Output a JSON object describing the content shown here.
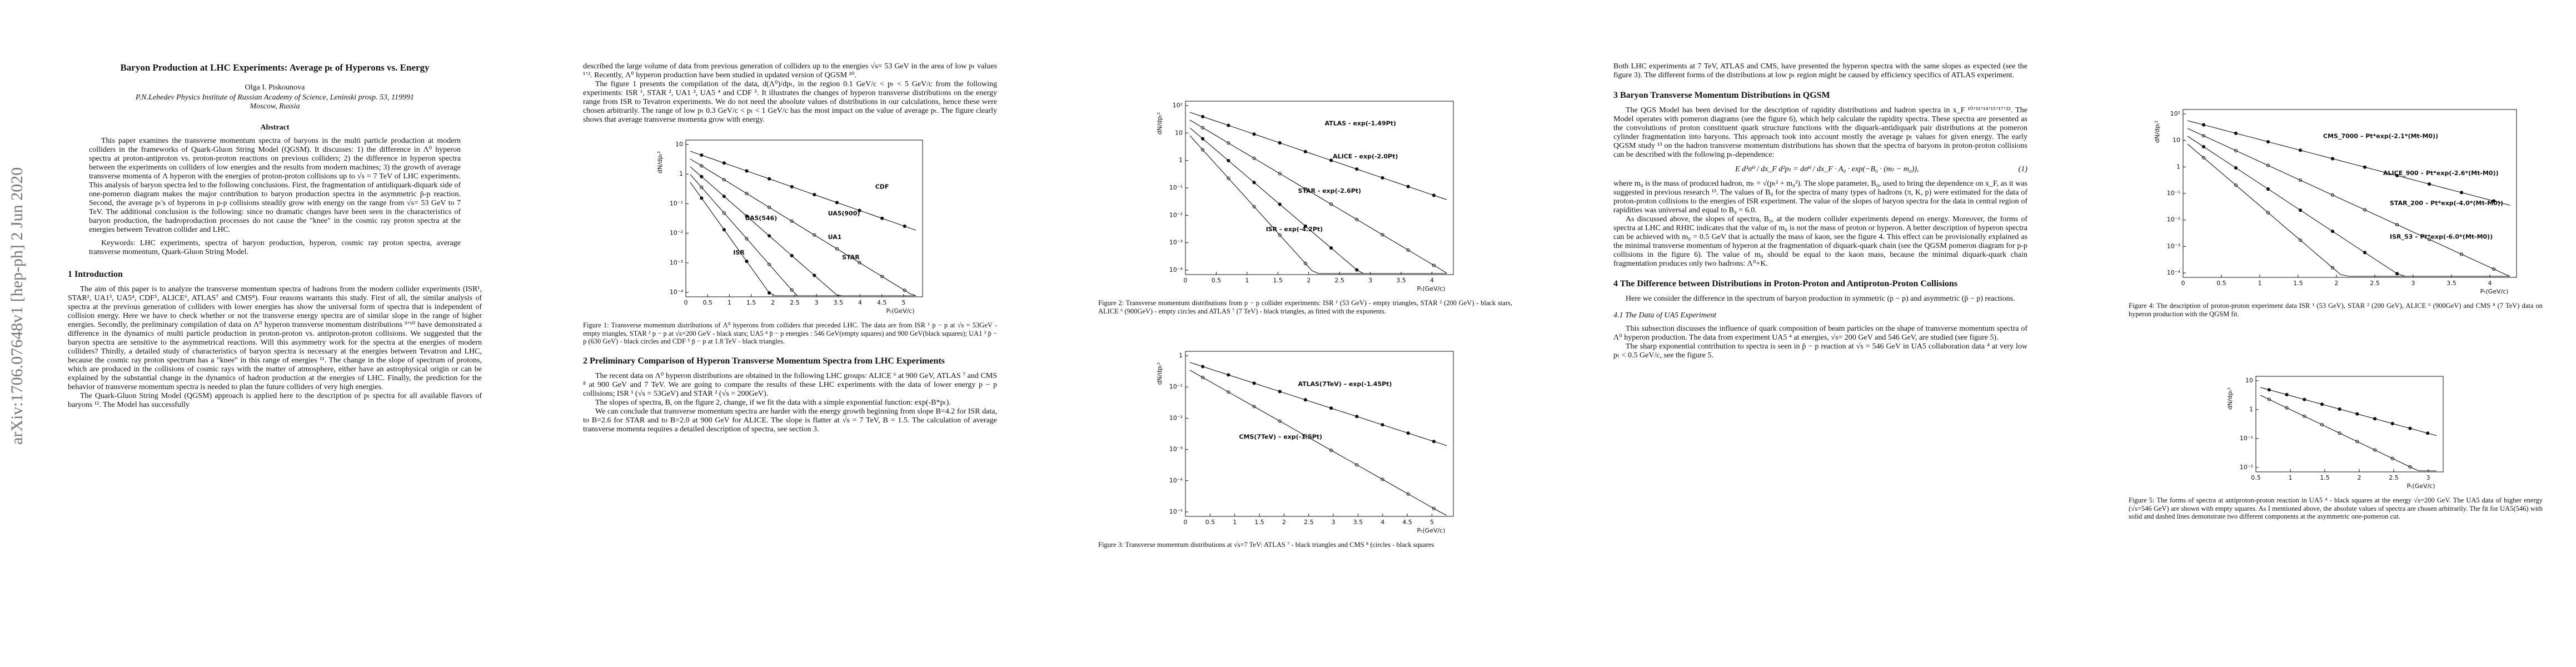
{
  "arxiv_stamp": "arXiv:1706.07648v1  [hep-ph]  2 Jun 2020",
  "pages": [
    {
      "blocks": [
        {
          "title": "Baryon Production at LHC Experiments: Average pₜ of Hyperons vs. Energy"
        },
        {
          "author": "Olga I. Piskounova"
        },
        {
          "centered": "P.N.Lebedev Physics Institute of Russian Academy of Science, Leninski prosp. 53, 119991"
        },
        {
          "centered": "Moscow, Russia"
        },
        {
          "abstract_heading": "Abstract"
        },
        {
          "abstract": "This paper examines the transverse momentum spectra of baryons in the multi particle production at modern colliders in the frameworks of Quark-Gluon String Model (QGSM). It discusses: 1) the difference in Λ⁰ hyperon spectra at proton-antiproton vs. proton-proton reactions on previous colliders; 2) the difference in hyperon spectra between the experiments on colliders of low energies and the results from modern machines; 3) the growth of average transverse momenta of Λ hyperon with the energies of proton-proton collisions up to √s = 7 TeV of LHC experiments. This analysis of baryon spectra led to the following conclusions. First, the fragmentation of antidiquark-diquark side of one-pomeron diagram makes the major contribution to baryon production spectra in the asymmetric p̄-p reaction. Second, the average pₜ's of hyperons in p-p collisions steadily grow with energy on the range from √s= 53 GeV to 7 TeV. The additional conclusion is the following: since no dramatic changes have been seen in the characteristics of baryon production, the hadroproduction processes do not cause the \"knee\" in the cosmic ray proton spectra at the energies between Tevatron collider and LHC."
        },
        {
          "keywords": "Keywords: LHC experiments, spectra of baryon production, hyperon, cosmic ray proton spectra, average transverse momentum, Quark-Gluon String Model."
        },
        {
          "heading": "1    Introduction"
        },
        {
          "paragraph": "The aim of this paper is to analyze the transverse momentum spectra of hadrons from the modern collider experiments (ISR¹, STAR², UA1³, UA5⁴, CDF⁵, ALICE⁶, ATLAS⁷ and CMS⁸). Four reasons warrants this study. First of all, the similar analysis of spectra at the previous generation of colliders with lower energies has show the universal form of spectra that is independent of collision energy. Here we have to check whether or not the transverse energy spectra are of similar slope in the range of higher energies. Secondly, the preliminary compilation of data on Λ⁰ hyperon transverse momentum distributions ⁹ʼ¹⁰ have demonstrated a difference in the dynamics of multi particle production in proton-proton vs. antiproton-proton collisions. We suggested that the baryon spectra are sensitive to the asymmetrical reactions. Will this asymmetry work for the spectra at the energies of modern colliders? Thirdly, a detailed study of characteristics of baryon spectra is necessary at the energies between Tevatron and LHC, because the cosmic ray proton spectrum has a \"knee\" in this range of energies ¹¹. The change in the slope of spectrum of protons, which are produced in the collisions of cosmic rays with the matter of atmosphere, either have an astrophysical origin or can be explained by the substantial change in the dynamics of hadron production at the energies of LHC. Finally, the prediction for the behavior of transverse momentum spectra is needed to plan the future colliders of very high energies."
        },
        {
          "paragraph": "The Quark-Gluon String Model (QGSM) approach is applied here to the description of pₜ spectra for all available flavors of baryons ¹². The Model has successfully"
        }
      ]
    },
    {
      "blocks": [
        {
          "continued": "described the large volume of data from previous generation of colliders up to the energies √s= 53 GeV in the area of low pₜ values ¹ʼ². Recently, Λ⁰ hyperon production have been studied in updated version of QGSM ²⁰."
        },
        {
          "paragraph": "The figure 1 presents the compilation of the data, d(Λ⁰)/dpₜ, in the region 0.1 GeV/c < pₜ < 5 GeV/c from the following experiments: ISR ¹, STAR ², UA1 ³, UA5 ⁴ and CDF ⁵. It illustrates the changes of hyperon transverse distributions on the energy range from ISR to Tevatron experiments. We do not need the absolute values of distributions in our calculations, hence these were chosen arbitrarily. The range of low pₜ 0.3 GeV/c < pₜ < 1 GeV/c has the most impact on the value of average pₜ. The figure clearly shows that average transverse momenta grow with energy."
        },
        {
          "figure": {
            "ylabel": "dN/dpₜ²",
            "xlabel": "Pₜ(GeV/c)",
            "xticks": [
              "0",
              "0.5",
              "1",
              "1.5",
              "2",
              "2.5",
              "3",
              "3.5",
              "4",
              "4.5",
              "5"
            ],
            "yticks": [
              "10",
              "1",
              "10⁻¹",
              "10⁻²",
              "10⁻³",
              "10⁻⁴"
            ],
            "labels": [
              "CDF",
              "UA5(900)",
              "UA5(546)",
              "UA1",
              "STAR",
              "ISR"
            ]
          },
          "caption": "Figure 1:   Transverse momentum distributions of Λ⁰ hyperons from colliders that preceded LHC. The data are from ISR ¹ p − p at √s = 53GeV - empty triangles, STAR ² p − p at √s=200 GeV - black stars; UA5 ⁴ p̄ − p energies : 546 GeV(empty squares) and 900 GeV(black squares); UA1 ³ p̄ − p (630 GeV) - black circles and CDF ⁵ p̄ − p at 1.8 TeV - black triangles."
        },
        {
          "heading": "2    Preliminary Comparison of Hyperon Transverse Momentum Spectra from LHC Experiments"
        },
        {
          "paragraph": "The recent data on Λ⁰ hyperon distributions are obtained in the following LHC groups: ALICE ⁶ at 900 GeV, ATLAS ⁷ and CMS ⁸ at 900 GeV and 7 TeV. We are going to compare the results of these LHC experiments with the data of lower energy p − p collisions; ISR ¹ (√s = 53GeV) and STAR ² (√s = 200GeV)."
        },
        {
          "paragraph": "The slopes of spectra, B, on the figure 2, change, if we fit the data with a simple exponential function: exp(-B*pₜ)."
        },
        {
          "paragraph": "We can conclude that transverse momentum spectra are harder with the energy growth beginning from slope B=4.2 for ISR data, to B=2.6 for STAR and to B=2.0 at 900 GeV for ALICE. The slope is flatter at √s = 7 TeV, B = 1.5. The calculation of average transverse momenta requires a detailed description of spectra, see section 3."
        }
      ]
    },
    {
      "blocks": [
        {
          "figure": {
            "ylabel": "dN/dpₜ²",
            "xlabel": "Pₜ(GeV/c)",
            "xticks": [
              "0",
              "0.5",
              "1",
              "1.5",
              "2",
              "2.5",
              "3",
              "3.5",
              "4"
            ],
            "yticks": [
              "10²",
              "10",
              "1",
              "10⁻¹",
              "10⁻²",
              "10⁻³",
              "10⁻⁴"
            ],
            "labels": [
              "ATLAS - exp(-1.49Pt)",
              "ALICE - exp(-2.0Pt)",
              "STAR - exp(-2.6Pt)",
              "ISR - exp(-4.2Pt)"
            ]
          },
          "caption": "Figure 2:   Transverse momentum distributions from p − p collider experiments: ISR ¹ (53 GeV) - empty triangles, STAR ² (200 GeV) - black stars, ALICE ⁶ (900GeV) - empty circles and ATLAS ⁷ (7 TeV) - black triangles, as fitted with the exponents."
        },
        {
          "figure": {
            "ylabel": "dN/dpₜ²",
            "xlabel": "Pₜ(GeV/c)",
            "xticks": [
              "0",
              "0.5",
              "1",
              "1.5",
              "2",
              "2.5",
              "3",
              "3.5",
              "4",
              "4.5",
              "5"
            ],
            "yticks": [
              "1",
              "10⁻¹",
              "10⁻²",
              "10⁻³",
              "10⁻⁴",
              "10⁻⁵"
            ],
            "labels": [
              "ATLAS(7TeV) – exp(-1.45Pt)",
              "CMS(7TeV) – exp(-1.5Pt)"
            ]
          },
          "caption": "Figure 3:   Transverse momentum distributions at √s=7 TeV: ATLAS ⁷ - black triangles and CMS ⁸ (circles - black squares"
        }
      ]
    },
    {
      "blocks": [
        {
          "continued": "Both LHC experiments at 7 TeV, ATLAS and CMS, have presented the hyperon spectra with the same slopes as expected (see the figure 3). The different forms of the distributions at low pₜ region might be caused by efficiency specifics of ATLAS experiment."
        },
        {
          "heading": "3    Baryon Transverse Momentum Distributions in QGSM"
        },
        {
          "paragraph": "The QGS Model has been devised for the description of rapidity distributions and hadron spectra in x_F ¹⁰ʼ¹¹ʼ¹⁴ʼ¹⁵ʼ¹⁷ʼ²². The Model operates with pomeron diagrams (see the figure 6), which help calculate the rapidity spectra. These spectra are presented as the convolutions of proton constituent quark structure functions with the diquark-antidiquark pair distributions at the pomeron cylinder fragmentation into baryons. This approach took into account mostly the average pₜ values for given energy. The early QGSM study ¹³ on the hadron transverse momentum distributions has shown that the spectra of baryons in proton-proton collisions can be described with the following pₜ-dependence:"
        },
        {
          "equation": "E d³σᴴ / dx_F d²pₜ = dσᴴ / dx_F · A₀ · exp(−B₀ · (mₜ − m₀)),",
          "number": "(1)"
        },
        {
          "cont_paragraph": "where m₀ is the mass of produced hadron, mₜ = √(pₜ² + m₀²). The slope parameter, B₀, used to bring the dependence on x_F, as it was suggested in previous research ¹³. The values of B₀ for the spectra of many types of hadrons (π, K, p) were estimated for the data of proton-proton collisions to the energies of ISR experiment. The value of the slopes of baryon spectra for the data in central region of rapidities was universal and equal to B₀ = 6.0."
        },
        {
          "paragraph": "As discussed above, the slopes of spectra, B₀, at the modern collider experiments depend on energy. Moreover, the forms of spectra at LHC and RHIC indicates that the value of m₀ is not the mass of proton or hyperon. A better description of hyperon spectra can be achieved with m₀ = 0.5 GeV that is actually the mass of kaon, see the figure 4. This effect can be provisionally explained as the minimal transverse momentum of hyperon at the fragmentation of diquark-quark chain (see the QGSM pomeron diagram for p-p collisions in the figure 6). The value of m₀ should be equal to the kaon mass, because the minimal diquark-quark chain fragmentation produces only two hadrons: Λ⁰+K."
        },
        {
          "heading": "4    The Difference between Distributions in Proton-Proton and Antiproton-Proton Collisions"
        },
        {
          "paragraph": "Here we consider the difference in the spectrum of baryon production in symmetric (p − p) and asymmetric (p̄ − p) reactions."
        },
        {
          "subheading": "4.1    The Data of UA5 Experiment"
        },
        {
          "paragraph": "This subsection discusses the influence of quark composition of beam particles on the shape of transverse momentum spectra of Λ⁰ hyperon production. The data from experiment UA5 ⁴ at energies, √s= 200 GeV and 546 GeV, are studied (see figure 5)."
        },
        {
          "paragraph": "The sharp exponential contribution to spectra is seen in p̄ − p reaction at √s = 546 GeV in UA5 collaboration data ⁴ at very low pₜ < 0.5 GeV/c, see the figure 5."
        }
      ]
    },
    {
      "blocks": [
        {
          "figure": {
            "ylabel": "dN/dpₜ²",
            "xlabel": "Pₜ(GeV/c)",
            "xticks": [
              "0",
              "0.5",
              "1",
              "1.5",
              "2",
              "2.5",
              "3",
              "3.5",
              "4"
            ],
            "yticks": [
              "10²",
              "10",
              "1",
              "10⁻¹",
              "10⁻²",
              "10⁻³",
              "10⁻⁴"
            ],
            "labels": [
              "CMS_7000 – Pt*exp(-2.1*(Mt-M0))",
              "ALICE_900 – Pt*exp(-2.6*(Mt-M0))",
              "STAR_200 – Pt*exp(-4.0*(Mt-M0))",
              "ISR_53 – Pt*exp(-6.0*(Mt-M0))"
            ]
          },
          "caption": "Figure 4:   The description of proton-proton experiment data ISR ¹ (53 GeV), STAR ² (200 GeV), ALICE ⁶ (900GeV) and CMS ⁸ (7 TeV) data on hyperon production with the QGSM fit."
        },
        {
          "figure": {
            "ylabel": "dN/dpₜ²",
            "xlabel": "Pₜ(GeV/c)",
            "xticks": [
              "0.5",
              "1",
              "1.5",
              "2",
              "2.5",
              "3"
            ],
            "yticks": [
              "10",
              "1",
              "10⁻¹",
              "10⁻²"
            ]
          },
          "caption": "Figure 5:   The forms of spectra at antiproton-proton reaction in UA5 ⁴ - black squares at the energy √s=200 GeV. The UA5 data of higher energy (√s=546 GeV) are shown with empty squares. As I mentioned above, the absolute values of spectra are chosen arbitrarily. The fit for UA5(546) with solid and dashed lines demonstrate two different components at the asymmetric one-pomeron cut."
        }
      ]
    }
  ]
}
